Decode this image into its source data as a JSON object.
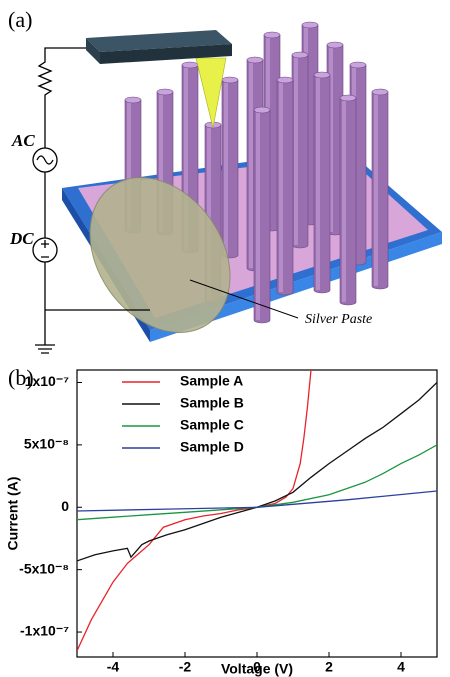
{
  "diagram": {
    "label": "(a)",
    "ac_label": "AC",
    "dc_label": "DC",
    "paste_label": "Silver Paste"
  },
  "chart_data": {
    "type": "line",
    "label": "(b)",
    "x_label": "Voltage (V)",
    "y_label": "Current (A)",
    "xlim": [
      -5,
      5
    ],
    "ylim": [
      -1.2e-07,
      1.1e-07
    ],
    "xticks": [
      -4,
      -2,
      0,
      2,
      4
    ],
    "yticks": [
      {
        "value": -1e-07,
        "label": "-1x10⁻⁷"
      },
      {
        "value": -5e-08,
        "label": "-5x10⁻⁸"
      },
      0,
      {
        "value": 5e-08,
        "label": "5x10⁻⁸"
      },
      {
        "value": 1e-07,
        "label": "1x10⁻⁷"
      }
    ],
    "legend": "upper left",
    "series": [
      {
        "name": "Sample A",
        "color": "#e8232a",
        "x": [
          -5,
          -4.6,
          -4.2,
          -4,
          -3.6,
          -3.2,
          -3,
          -2.6,
          -2.2,
          -2,
          -1.5,
          -1,
          -0.5,
          0,
          0.5,
          0.8,
          1,
          1.2,
          1.3,
          1.4,
          1.5
        ],
        "values": [
          -1.15e-07,
          -9e-08,
          -7e-08,
          -6e-08,
          -4.5e-08,
          -3.5e-08,
          -3e-08,
          -1.6e-08,
          -1.2e-08,
          -1e-08,
          -7e-09,
          -5e-09,
          -2e-09,
          0,
          3e-09,
          8e-09,
          1.5e-08,
          3.5e-08,
          5.5e-08,
          8e-08,
          1.1e-07
        ]
      },
      {
        "name": "Sample B",
        "color": "#111111",
        "x": [
          -5,
          -4.5,
          -4,
          -3.6,
          -3.5,
          -3.2,
          -3,
          -2.5,
          -2,
          -1.5,
          -1,
          -0.5,
          0,
          0.5,
          1,
          1.5,
          2,
          2.5,
          3,
          3.5,
          4,
          4.5,
          5
        ],
        "values": [
          -4.3e-08,
          -3.8e-08,
          -3.5e-08,
          -3.3e-08,
          -4e-08,
          -3e-08,
          -2.7e-08,
          -2.2e-08,
          -1.8e-08,
          -1.3e-08,
          -8e-09,
          -4e-09,
          0,
          5e-09,
          1.2e-08,
          2.4e-08,
          3.5e-08,
          4.5e-08,
          5.5e-08,
          6.4e-08,
          7.5e-08,
          8.6e-08,
          1e-07
        ]
      },
      {
        "name": "Sample C",
        "color": "#1a9641",
        "x": [
          -5,
          -4,
          -3,
          -2,
          -1,
          0,
          1,
          2,
          3,
          3.5,
          4,
          4.5,
          5
        ],
        "values": [
          -1e-08,
          -8e-09,
          -6e-09,
          -4e-09,
          -2e-09,
          0,
          4e-09,
          1e-08,
          2e-08,
          2.7e-08,
          3.5e-08,
          4.2e-08,
          5e-08
        ]
      },
      {
        "name": "Sample D",
        "color": "#2b3fa0",
        "x": [
          -5,
          -2.5,
          0,
          2.5,
          5
        ],
        "values": [
          -3e-09,
          -1.5e-09,
          0,
          6e-09,
          1.3e-08
        ]
      }
    ]
  }
}
